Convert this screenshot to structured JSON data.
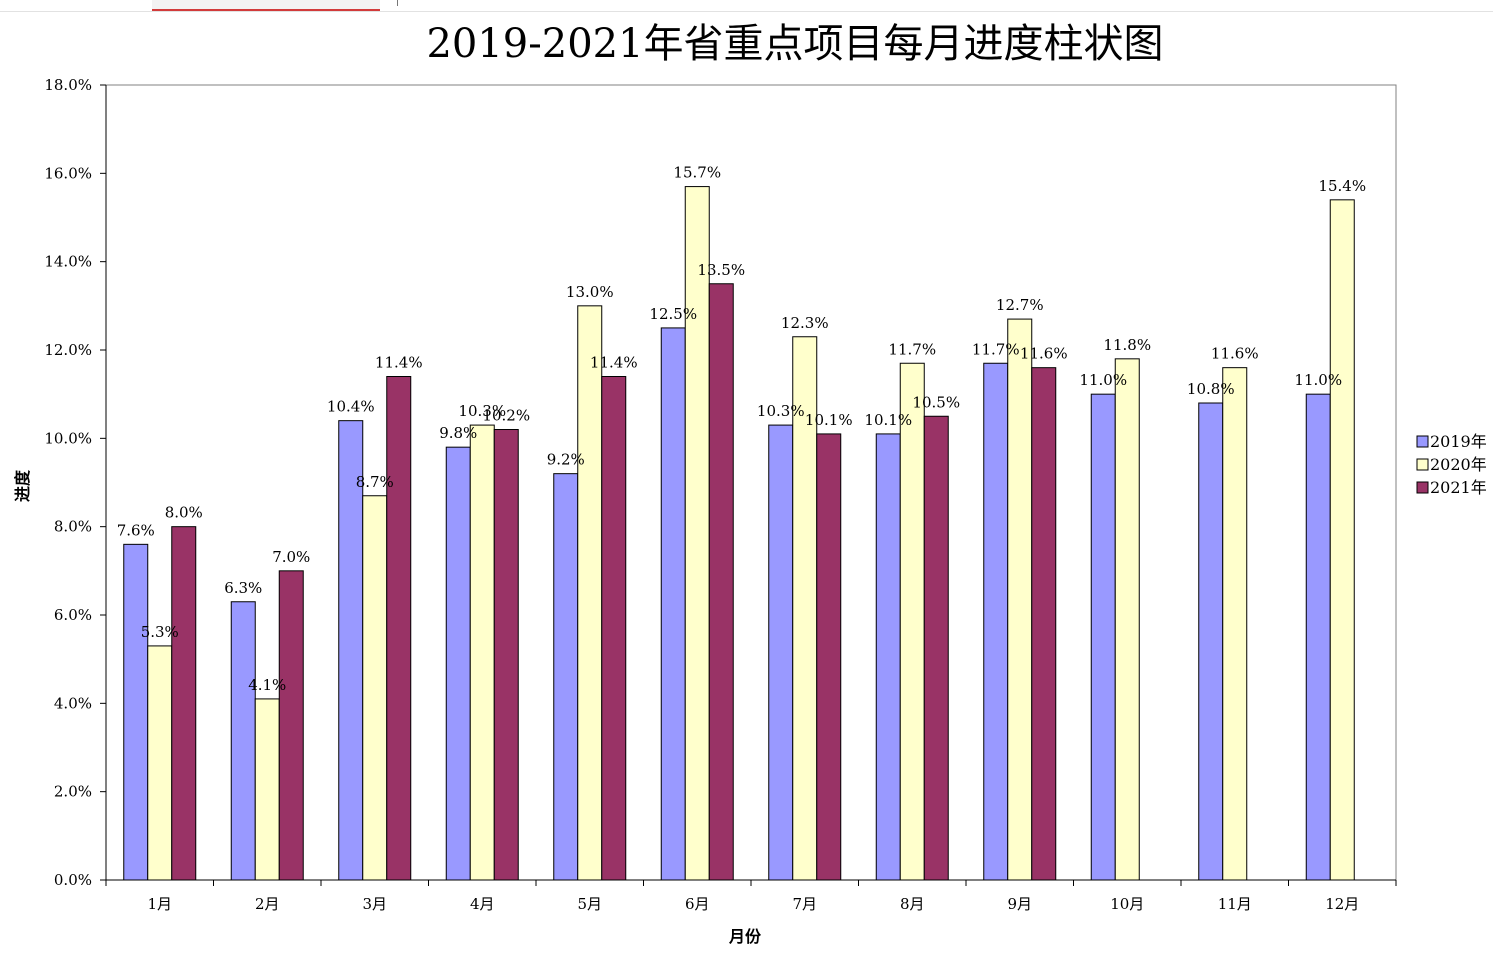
{
  "chart_data": {
    "type": "bar",
    "title": "2019-2021年省重点项目每月进度柱状图",
    "xlabel": "月份",
    "ylabel": "进度",
    "categories": [
      "1月",
      "2月",
      "3月",
      "4月",
      "5月",
      "6月",
      "7月",
      "8月",
      "9月",
      "10月",
      "11月",
      "12月"
    ],
    "series": [
      {
        "name": "2019年",
        "color": "#9999ff",
        "values": [
          7.6,
          6.3,
          10.4,
          9.8,
          9.2,
          12.5,
          10.3,
          10.1,
          11.7,
          11.0,
          10.8,
          11.0
        ],
        "labels": [
          "7.6%",
          "6.3%",
          "10.4%",
          "9.8%",
          "9.2%",
          "12.5%",
          "10.3%",
          "10.1%",
          "11.7%",
          "11.0%",
          "10.8%",
          "11.0%"
        ]
      },
      {
        "name": "2020年",
        "color": "#ffffcc",
        "values": [
          5.3,
          4.1,
          8.7,
          10.3,
          13.0,
          15.7,
          12.3,
          11.7,
          12.7,
          11.8,
          11.6,
          15.4
        ],
        "labels": [
          "5.3%",
          "4.1%",
          "8.7%",
          "10.3%",
          "13.0%",
          "15.7%",
          "12.3%",
          "11.7%",
          "12.7%",
          "11.8%",
          "11.6%",
          "15.4%"
        ]
      },
      {
        "name": "2021年",
        "color": "#993366",
        "values": [
          8.0,
          7.0,
          11.4,
          10.2,
          11.4,
          13.5,
          10.1,
          10.5,
          11.6,
          null,
          null,
          null
        ],
        "labels": [
          "8.0%",
          "7.0%",
          "11.4%",
          "10.2%",
          "11.4%",
          "13.5%",
          "10.1%",
          "10.5%",
          "11.6%",
          null,
          null,
          null
        ]
      }
    ],
    "ylim": [
      0,
      18
    ],
    "yticks": [
      "0.0%",
      "2.0%",
      "4.0%",
      "6.0%",
      "8.0%",
      "10.0%",
      "12.0%",
      "14.0%",
      "16.0%",
      "18.0%"
    ],
    "ytick_values": [
      0,
      2,
      4,
      6,
      8,
      10,
      12,
      14,
      16,
      18
    ],
    "grid": false,
    "legend": "right"
  }
}
